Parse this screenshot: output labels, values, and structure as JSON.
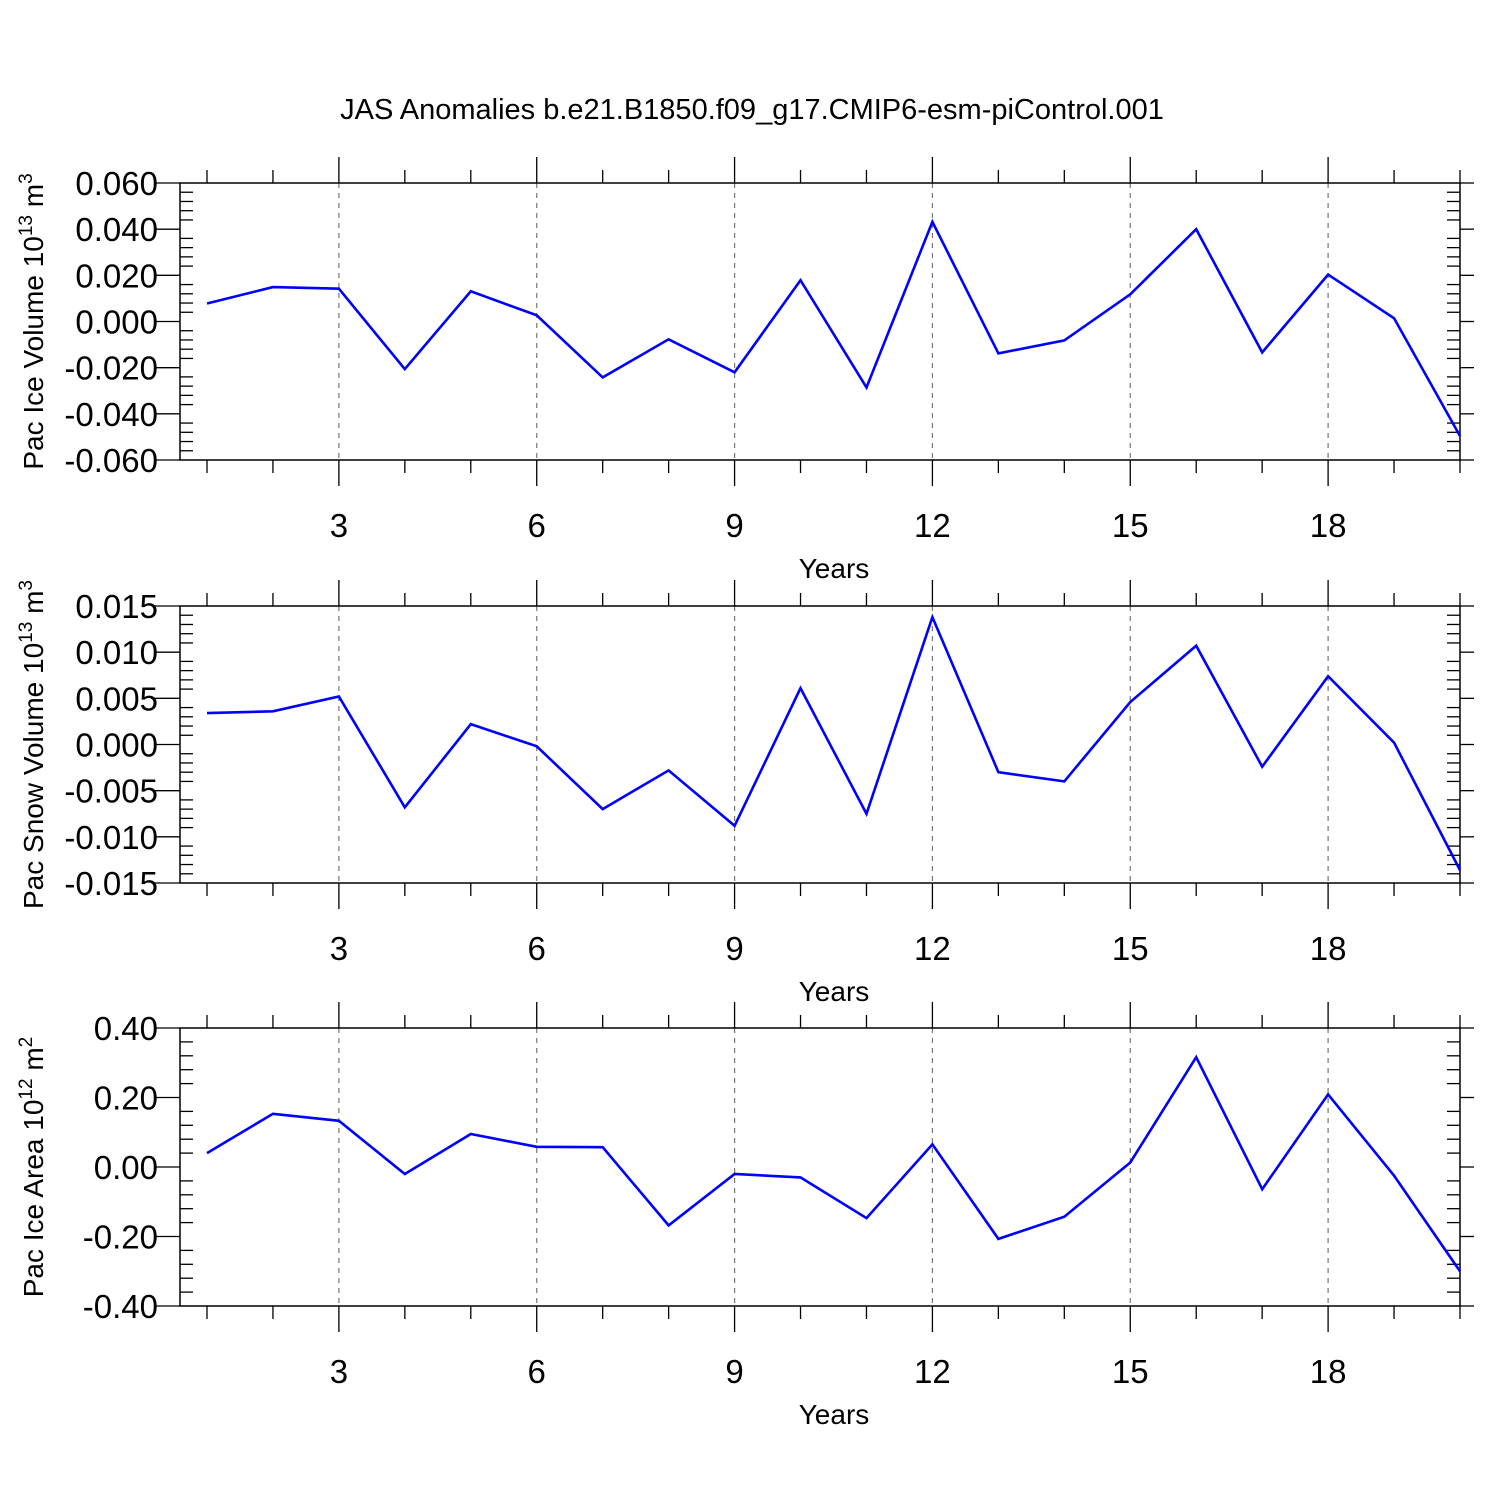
{
  "figure": {
    "title": "JAS Anomalies b.e21.B1850.f09_g17.CMIP6-esm-piControl.001"
  },
  "line_color": "#0000FF",
  "chart_data": [
    {
      "type": "line",
      "xlabel": "Years",
      "ylabel": "Pac Ice Volume 10",
      "ylabel_exp": "13",
      "ylabel_unit": " m",
      "ylabel_unit_exp": "3",
      "xlim": [
        1,
        20
      ],
      "ylim": [
        -0.06,
        0.06
      ],
      "x_ticks": [
        3,
        6,
        9,
        12,
        15,
        18
      ],
      "x_ticks_text": [
        "3",
        "6",
        "9",
        "12",
        "15",
        "18"
      ],
      "y_ticks": [
        0.06,
        0.04,
        0.02,
        0.0,
        -0.02,
        -0.04,
        -0.06
      ],
      "y_ticks_text": [
        "0.060",
        "0.040",
        "0.020",
        "0.000",
        "-0.020",
        "-0.040",
        "-0.060"
      ],
      "grid": "vertical dashed at major x ticks",
      "x": [
        1,
        2,
        3,
        4,
        5,
        6,
        7,
        8,
        9,
        10,
        11,
        12,
        13,
        14,
        15,
        16,
        17,
        18,
        19,
        20
      ],
      "series": [
        {
          "values": [
            0.0078,
            0.0149,
            0.0142,
            -0.0206,
            0.0131,
            0.0027,
            -0.0242,
            -0.0077,
            -0.022,
            0.0179,
            -0.0286,
            0.0432,
            -0.0138,
            -0.0082,
            0.0118,
            0.04,
            -0.0134,
            0.0203,
            0.0014,
            -0.0496
          ]
        }
      ]
    },
    {
      "type": "line",
      "xlabel": "Years",
      "ylabel": "Pac Snow Volume 10",
      "ylabel_exp": "13",
      "ylabel_unit": " m",
      "ylabel_unit_exp": "3",
      "xlim": [
        1,
        20
      ],
      "ylim": [
        -0.015,
        0.015
      ],
      "x_ticks": [
        3,
        6,
        9,
        12,
        15,
        18
      ],
      "x_ticks_text": [
        "3",
        "6",
        "9",
        "12",
        "15",
        "18"
      ],
      "y_ticks": [
        0.015,
        0.01,
        0.005,
        0.0,
        -0.005,
        -0.01,
        -0.015
      ],
      "y_ticks_text": [
        "0.015",
        "0.010",
        "0.005",
        "0.000",
        "-0.005",
        "-0.010",
        "-0.015"
      ],
      "grid": "vertical dashed at major x ticks",
      "x": [
        1,
        2,
        3,
        4,
        5,
        6,
        7,
        8,
        9,
        10,
        11,
        12,
        13,
        14,
        15,
        16,
        17,
        18,
        19,
        20
      ],
      "series": [
        {
          "values": [
            0.0034,
            0.0036,
            0.0052,
            -0.0068,
            0.0022,
            -0.0002,
            -0.007,
            -0.0028,
            -0.0088,
            0.0061,
            -0.0075,
            0.0138,
            -0.003,
            -0.004,
            0.0046,
            0.0107,
            -0.0024,
            0.0074,
            0.0002,
            -0.0136
          ]
        }
      ]
    },
    {
      "type": "line",
      "xlabel": "Years",
      "ylabel": "Pac Ice Area 10",
      "ylabel_exp": "12",
      "ylabel_unit": " m",
      "ylabel_unit_exp": "2",
      "xlim": [
        1,
        20
      ],
      "ylim": [
        -0.4,
        0.4
      ],
      "x_ticks": [
        3,
        6,
        9,
        12,
        15,
        18
      ],
      "x_ticks_text": [
        "3",
        "6",
        "9",
        "12",
        "15",
        "18"
      ],
      "y_ticks": [
        0.4,
        0.2,
        0.0,
        -0.2,
        -0.4
      ],
      "y_ticks_text": [
        "0.40",
        "0.20",
        "0.00",
        "-0.20",
        "-0.40"
      ],
      "grid": "vertical dashed at major x ticks",
      "x": [
        1,
        2,
        3,
        4,
        5,
        6,
        7,
        8,
        9,
        10,
        11,
        12,
        13,
        14,
        15,
        16,
        17,
        18,
        19,
        20
      ],
      "series": [
        {
          "values": [
            0.04,
            0.153,
            0.133,
            -0.02,
            0.095,
            0.058,
            0.057,
            -0.168,
            -0.02,
            -0.03,
            -0.147,
            0.065,
            -0.207,
            -0.143,
            0.013,
            0.316,
            -0.064,
            0.209,
            -0.025,
            -0.3
          ]
        }
      ]
    }
  ]
}
